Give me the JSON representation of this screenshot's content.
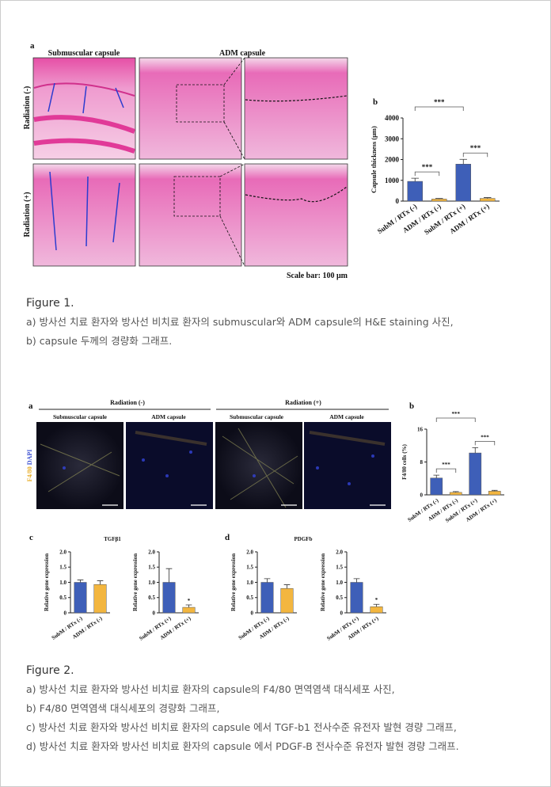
{
  "figure1": {
    "panel_labels": [
      "a",
      "b"
    ],
    "column_headers": [
      "Submuscular capsule",
      "ADM capsule"
    ],
    "row_labels": [
      "Radiation (-)",
      "Radiation (+)"
    ],
    "scale_bar": "Scale bar: 100 μm",
    "caption_title": "Figure 1.",
    "caption_lines": [
      "a) 방사선 치료 환자와 방사선 비치료 환자의 submuscular와 ADM capsule의 H&E staining 사진,",
      "b) capsule 두께의 경량화 그래프."
    ]
  },
  "figure2": {
    "panel_labels": [
      "a",
      "b",
      "c",
      "d"
    ],
    "group_headers": [
      "Radiation (-)",
      "Radiation (+)"
    ],
    "column_headers": [
      "Submuscular capsule",
      "ADM capsule",
      "Submuscular capsule",
      "ADM capsule"
    ],
    "stain_labels": [
      "F4/80",
      "DAPI"
    ],
    "caption_title": "Figure 2.",
    "caption_lines": [
      "a) 방사선 치료 환자와 방사선 비치료 환자의 capsule의 F4/80 면역염색 대식세포 사진,",
      "b) F4/80 면역염색 대식세포의 경량화 그래프,",
      "c) 방사선 치료 환자와 방사선 비치료 환자의 capsule 에서 TGF-b1 전사수준 유전자 발현 경량 그래프,",
      "d) 방사선 치료 환자와 방사선 비치료 환자의 capsule 에서 PDGF-B 전사수준 유전자 발현 경량 그래프."
    ]
  },
  "chart_data": [
    {
      "type": "bar",
      "y_label": "Capsule thickness (μm)",
      "categories": [
        "SubM / RTx (-)",
        "ADM / RTx (-)",
        "SubM / RTx (+)",
        "ADM / RTx (+)"
      ],
      "values": [
        950,
        100,
        1780,
        130
      ],
      "errors": [
        150,
        30,
        230,
        40
      ],
      "colors": [
        "#3e5fb8",
        "#f3b63f",
        "#3e5fb8",
        "#f3b63f"
      ],
      "ylim": [
        0,
        4000
      ],
      "yticks": [
        0,
        1000,
        2000,
        3000,
        4000
      ],
      "annotations": [
        "***",
        "***",
        "***"
      ]
    },
    {
      "type": "bar",
      "y_label": "F4/80 cells (%)",
      "categories": [
        "SubM / RTx (-)",
        "ADM / RTx (-)",
        "SubM / RTx (+)",
        "ADM / RTx (+)"
      ],
      "values": [
        4.1,
        0.6,
        10.2,
        0.9
      ],
      "errors": [
        0.7,
        0.2,
        1.3,
        0.2
      ],
      "colors": [
        "#3e5fb8",
        "#f3b63f",
        "#3e5fb8",
        "#f3b63f"
      ],
      "ylim": [
        0,
        16
      ],
      "yticks": [
        0,
        8,
        16
      ],
      "annotations": [
        "***",
        "***",
        "***"
      ]
    },
    {
      "type": "bar",
      "title": "TGFβ1",
      "y_label": "Relative gene expression",
      "categories": [
        "SubM / RTx (-)",
        "ADM / RTx (-)"
      ],
      "values": [
        1.0,
        0.93
      ],
      "errors": [
        0.08,
        0.12
      ],
      "colors": [
        "#3e5fb8",
        "#f3b63f"
      ],
      "ylim": [
        0,
        2
      ],
      "yticks": [
        0,
        0.5,
        {
          "value": 1,
          "label": "1.0"
        },
        1.5,
        {
          "value": 2,
          "label": "2.0"
        }
      ]
    },
    {
      "type": "bar",
      "y_label": "Relative gene expression",
      "categories": [
        "SubM / RTx (+)",
        "ADM / RTx (+)"
      ],
      "values": [
        1.0,
        0.18
      ],
      "errors": [
        0.45,
        0.08
      ],
      "colors": [
        "#3e5fb8",
        "#f3b63f"
      ],
      "ylim": [
        0,
        2
      ],
      "yticks": [
        0,
        0.5,
        {
          "value": 1,
          "label": "1.0"
        },
        1.5,
        {
          "value": 2,
          "label": "2.0"
        }
      ],
      "annotations": [
        "*"
      ]
    },
    {
      "type": "bar",
      "title": "PDGFb",
      "y_label": "Relative gene expression",
      "categories": [
        "SubM / RTx (-)",
        "ADM / RTx (-)"
      ],
      "values": [
        1.0,
        0.8
      ],
      "errors": [
        0.12,
        0.12
      ],
      "colors": [
        "#3e5fb8",
        "#f3b63f"
      ],
      "ylim": [
        0,
        2
      ],
      "yticks": [
        0,
        0.5,
        {
          "value": 1,
          "label": "1.0"
        },
        1.5,
        {
          "value": 2,
          "label": "2.0"
        }
      ]
    },
    {
      "type": "bar",
      "y_label": "Relative gene expression",
      "categories": [
        "SubM / RTx (+)",
        "ADM / RTx (+)"
      ],
      "values": [
        1.0,
        0.2
      ],
      "errors": [
        0.12,
        0.08
      ],
      "colors": [
        "#3e5fb8",
        "#f3b63f"
      ],
      "ylim": [
        0,
        2
      ],
      "yticks": [
        0,
        0.5,
        {
          "value": 1,
          "label": "1.0"
        },
        1.5,
        {
          "value": 2,
          "label": "2.0"
        }
      ],
      "annotations": [
        "*"
      ]
    }
  ]
}
